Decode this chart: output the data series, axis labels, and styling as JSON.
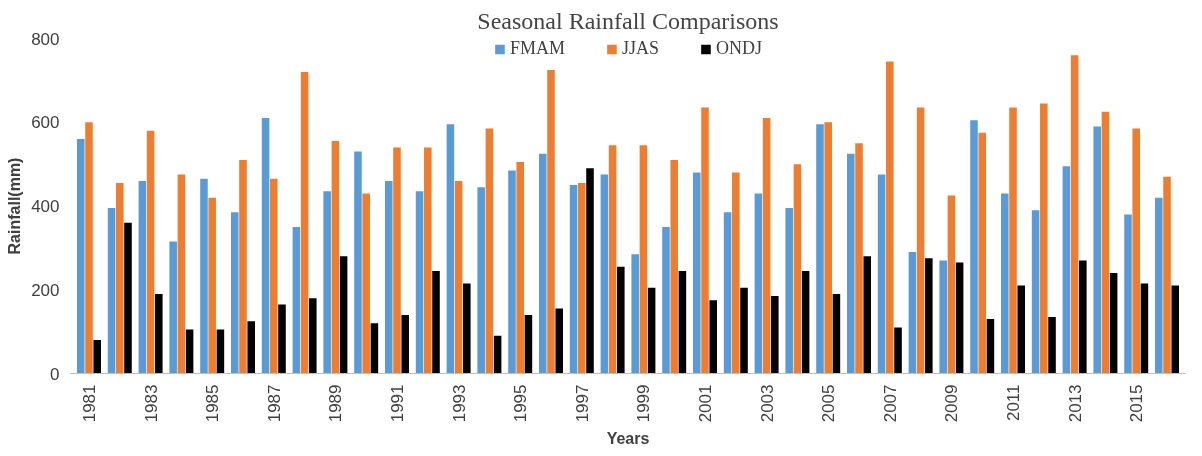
{
  "chart_data": {
    "type": "bar",
    "title": "Seasonal Rainfall Comparisons",
    "xlabel": "Years",
    "ylabel": "Rainfall(mm)",
    "categories": [
      "1981",
      null,
      "1983",
      null,
      "1985",
      null,
      "1987",
      null,
      "1989",
      null,
      "1991",
      null,
      "1993",
      null,
      "1995",
      null,
      "1997",
      null,
      "1999",
      null,
      "2001",
      null,
      "2003",
      null,
      "2005",
      null,
      "2007",
      null,
      "2009",
      null,
      "2011",
      null,
      "2013",
      null,
      "2015",
      null
    ],
    "series": [
      {
        "name": "FMAM",
        "color": "#5b9bd5",
        "values": [
          560,
          395,
          460,
          315,
          465,
          385,
          610,
          350,
          435,
          530,
          460,
          435,
          595,
          445,
          485,
          525,
          450,
          475,
          285,
          350,
          480,
          385,
          430,
          395,
          595,
          525,
          475,
          290,
          270,
          605,
          430,
          390,
          495,
          590,
          380,
          420
        ]
      },
      {
        "name": "JJAS",
        "color": "#ed7d31",
        "values": [
          600,
          455,
          580,
          475,
          420,
          510,
          465,
          720,
          555,
          430,
          540,
          540,
          460,
          585,
          505,
          725,
          455,
          545,
          545,
          510,
          635,
          480,
          610,
          500,
          600,
          550,
          745,
          635,
          425,
          575,
          635,
          645,
          760,
          625,
          585,
          470
        ]
      },
      {
        "name": "ONDJ",
        "color": "#000000",
        "values": [
          80,
          360,
          190,
          105,
          105,
          125,
          165,
          180,
          280,
          120,
          140,
          245,
          215,
          90,
          140,
          155,
          490,
          255,
          205,
          245,
          175,
          205,
          185,
          245,
          190,
          280,
          110,
          275,
          265,
          130,
          210,
          135,
          270,
          240,
          215,
          210
        ]
      }
    ],
    "ylim": [
      0,
      800
    ],
    "yticks": [
      0,
      200,
      400,
      600,
      800
    ],
    "grid": false,
    "legend": "top"
  }
}
